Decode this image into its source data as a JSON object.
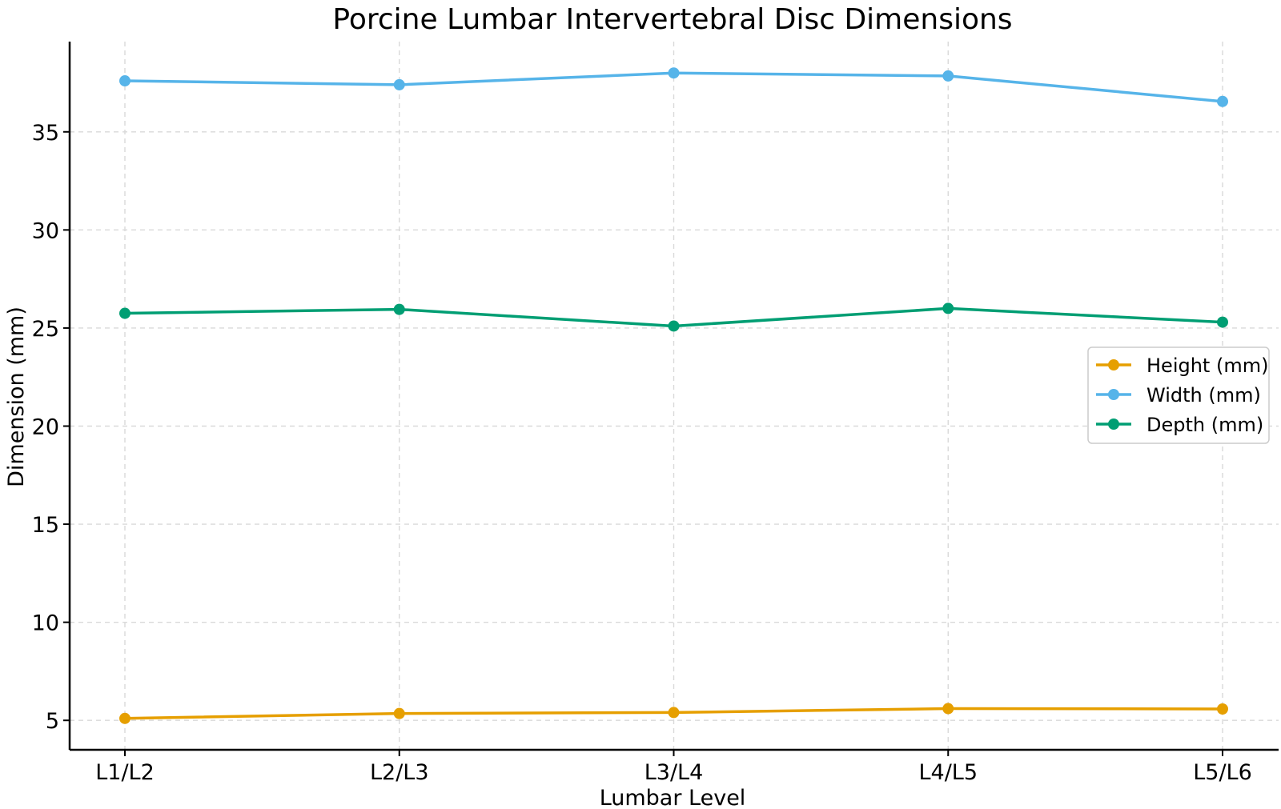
{
  "chart_data": {
    "type": "line",
    "title": "Porcine Lumbar Intervertebral Disc Dimensions",
    "xlabel": "Lumbar Level",
    "ylabel": "Dimension (mm)",
    "categories": [
      "L1/L2",
      "L2/L3",
      "L3/L4",
      "L4/L5",
      "L5/L6"
    ],
    "yticks": [
      5,
      10,
      15,
      20,
      25,
      30,
      35
    ],
    "ylim": [
      3.5,
      39.6
    ],
    "grid": true,
    "legend_position": "center-right",
    "series": [
      {
        "name": "Height (mm)",
        "color": "#E69F00",
        "values": [
          5.1,
          5.35,
          5.4,
          5.6,
          5.58
        ]
      },
      {
        "name": "Width (mm)",
        "color": "#56B4E9",
        "values": [
          37.6,
          37.4,
          38.0,
          37.85,
          36.55
        ]
      },
      {
        "name": "Depth (mm)",
        "color": "#009E73",
        "values": [
          25.75,
          25.95,
          25.1,
          26.0,
          25.3
        ]
      }
    ]
  }
}
